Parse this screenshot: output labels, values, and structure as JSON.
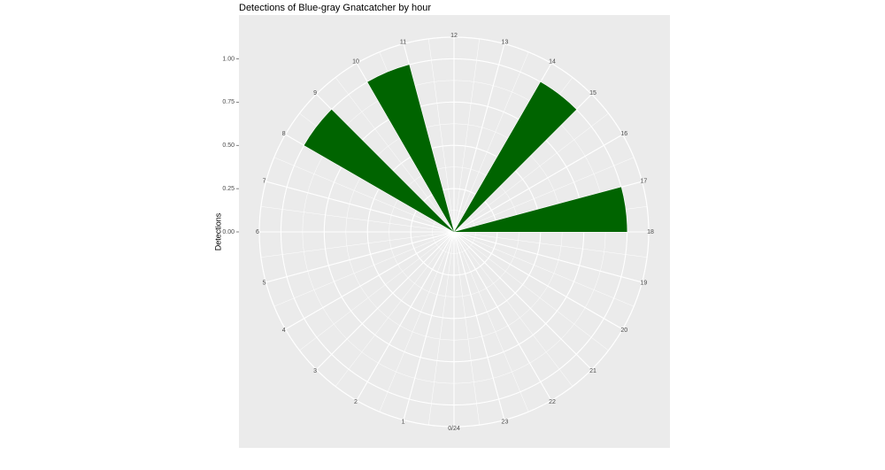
{
  "chart_data": {
    "type": "polar-bar",
    "title": "Detections of Blue-gray Gnatcatcher by hour",
    "y_label": "Detections",
    "x": [
      8,
      10,
      14,
      17
    ],
    "values": [
      1,
      1,
      1,
      1
    ],
    "color": "#006400",
    "xlim": [
      0,
      24
    ],
    "xticks": [
      {
        "value": 0,
        "label": "0/24"
      },
      1,
      2,
      3,
      4,
      5,
      6,
      7,
      8,
      9,
      10,
      11,
      12,
      13,
      14,
      15,
      16,
      17,
      18,
      19,
      20,
      21,
      22,
      23
    ],
    "ylim": [
      0,
      1.125
    ],
    "yticks": [
      {
        "value": 0,
        "label": "0.00"
      },
      {
        "value": 0.25,
        "label": "0.25"
      },
      {
        "value": 0.5,
        "label": "0.50"
      },
      {
        "value": 0.75,
        "label": "0.75"
      },
      {
        "value": 1,
        "label": "1.00"
      }
    ],
    "grid": true
  }
}
